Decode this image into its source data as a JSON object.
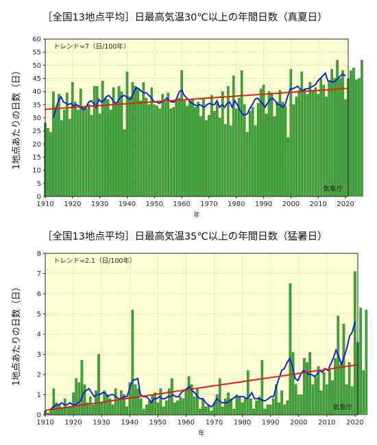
{
  "chart_data": [
    {
      "type": "bar",
      "title": "［全国13地点平均］日最高気温30℃以上の年間日数（真夏日）",
      "xlabel": "年",
      "ylabel": "1地点あたりの日数（日）",
      "trend_label": "トレンド=7（日/100年）",
      "credit": "気象庁",
      "xlim": [
        1910,
        2021
      ],
      "ylim": [
        0,
        60
      ],
      "xticks": [
        1910,
        1920,
        1930,
        1940,
        1950,
        1960,
        1970,
        1980,
        1990,
        2000,
        2010,
        2020
      ],
      "yticks": [
        0,
        5,
        10,
        15,
        20,
        25,
        30,
        35,
        40,
        45,
        50,
        55,
        60
      ],
      "grid": true,
      "bar_color": "#3fa33a",
      "moving_average_color": "#1020dd",
      "trend_line_color": "#e02010",
      "x_start": 1910,
      "values": [
        28,
        26,
        24.5,
        40,
        34,
        39,
        29,
        33,
        39.5,
        29.5,
        43.5,
        36,
        33,
        41,
        34,
        33.5,
        35,
        31,
        42,
        42,
        31.5,
        44,
        37.5,
        37,
        33,
        41.5,
        35,
        42,
        40,
        25.5,
        47.5,
        38,
        43.5,
        42,
        41,
        36.5,
        43.5,
        37.5,
        35,
        41.5,
        35,
        34.5,
        33.5,
        39,
        36,
        39.5,
        33.5,
        34,
        37,
        37.5,
        48,
        37,
        34.5,
        36.5,
        37,
        34,
        36,
        30.5,
        37.5,
        29,
        31,
        38.5,
        32.5,
        35.5,
        30,
        40,
        27.5,
        42,
        27,
        46,
        33.5,
        37.5,
        48,
        35,
        24.5,
        32.5,
        34,
        27,
        35.5,
        41,
        42.5,
        31.5,
        40,
        39.5,
        30.5,
        36,
        40.5,
        36,
        34.5,
        22.5,
        48.5,
        35,
        38,
        40.5,
        47.5,
        41,
        39,
        43.5,
        40.5,
        41.5,
        39,
        45,
        42.5,
        38,
        44,
        48.5,
        45,
        52,
        45,
        48,
        37,
        45,
        48,
        49,
        44.5,
        45,
        52
      ],
      "moving_average": [
        30,
        33.5,
        36.5,
        38,
        36,
        35.5,
        35,
        35.5,
        34.5,
        35,
        34.5,
        34,
        33,
        34,
        36,
        36.5,
        35.5,
        34,
        37,
        36,
        36.5,
        38,
        38.5,
        37.5,
        36,
        35.5,
        37,
        38,
        38.5,
        38,
        37,
        37.5,
        40,
        41.5,
        41,
        40,
        39.5,
        39.5,
        38.5,
        37.5,
        36,
        36,
        35.5,
        36,
        36.5,
        37.5,
        36.5,
        36,
        36,
        37.5,
        40,
        40.5,
        38.5,
        37.5,
        36.5,
        35.5,
        35,
        34.5,
        35,
        34.5,
        34,
        35,
        35.5,
        35,
        35,
        36.5,
        34,
        35,
        34,
        35.5,
        36,
        34,
        36.5,
        35,
        33,
        31.5,
        31,
        31.5,
        33.5,
        35,
        37,
        37.5,
        36.5,
        35.5,
        34,
        35.5,
        37,
        37.5,
        36.5,
        35,
        35,
        34,
        35,
        38,
        41,
        41,
        41.5,
        42,
        41,
        40,
        41,
        41,
        41.5,
        42,
        42.5,
        44,
        45,
        46,
        47,
        44,
        44,
        43.5,
        44,
        45,
        46,
        46.5,
        46
      ],
      "moving_average_years": [
        1913,
        2020
      ],
      "trend_line": {
        "x": [
          1910,
          2021
        ],
        "y": [
          33.2,
          41.2
        ]
      }
    },
    {
      "type": "bar",
      "title": "［全国13地点平均］日最高気温35℃以上の年間日数（猛暑日）",
      "xlabel": "年",
      "ylabel": "1地点あたりの日数（日）",
      "trend_label": "トレンド=2.1（日/100年）",
      "credit": "気象庁",
      "xlim": [
        1910,
        2021
      ],
      "ylim": [
        0,
        8
      ],
      "xticks": [
        1910,
        1920,
        1930,
        1940,
        1950,
        1960,
        1970,
        1980,
        1990,
        2000,
        2010,
        2020
      ],
      "yticks": [
        0,
        1,
        2,
        3,
        4,
        5,
        6,
        7,
        8
      ],
      "grid": true,
      "bar_color": "#3fa33a",
      "moving_average_color": "#1020dd",
      "trend_line_color": "#e02010",
      "x_start": 1910,
      "values": [
        0.2,
        0.1,
        0.3,
        1.3,
        0.6,
        0.5,
        0.3,
        0.8,
        0.4,
        0.4,
        1.1,
        1.8,
        1.6,
        2.7,
        1.5,
        0.6,
        0.9,
        0.5,
        1.2,
        3,
        0.6,
        1.2,
        1,
        0.8,
        0.5,
        1.3,
        0.7,
        1.2,
        1,
        0.4,
        1.6,
        5.2,
        1.5,
        1.3,
        0.8,
        0.3,
        0.5,
        0.7,
        1,
        1.1,
        0.6,
        1.3,
        0.4,
        0.7,
        1.3,
        1.8,
        0.6,
        0.7,
        0.9,
        0.8,
        1.2,
        1.9,
        1.5,
        0.9,
        1.3,
        0.3,
        0.8,
        0.4,
        0.5,
        0.2,
        0.6,
        1,
        1.8,
        0.4,
        0.8,
        1.1,
        0.8,
        0.3,
        1,
        0.9,
        0.6,
        0.8,
        2.2,
        0.8,
        0.3,
        0.7,
        0.9,
        2.7,
        0.3,
        0.5,
        0.5,
        0.8,
        1.5,
        0.6,
        1.2,
        0.5,
        0.7,
        6.5,
        3.1,
        1.5,
        1,
        1,
        2.8,
        2.6,
        3.1,
        1.5,
        1.9,
        2.4,
        1.2,
        2.1,
        1.5,
        2.3,
        1.7,
        2.8,
        4.9,
        2.5,
        4.5,
        1.5,
        2.6,
        1.4,
        7.1,
        3.6,
        5.3,
        2.2,
        5.2
      ],
      "moving_average": [
        0.3,
        0.4,
        0.5,
        0.5,
        0.6,
        0.5,
        0.5,
        0.6,
        0.5,
        0.5,
        0.6,
        0.7,
        1.1,
        1.2,
        1.3,
        1.1,
        0.9,
        1,
        1,
        1.1,
        1.1,
        0.9,
        1,
        1,
        0.9,
        0.8,
        0.8,
        0.9,
        0.9,
        1.3,
        1.7,
        1.75,
        1.8,
        1,
        0.9,
        0.9,
        0.8,
        0.6,
        0.8,
        0.8,
        0.9,
        0.8,
        0.8,
        0.9,
        0.9,
        1,
        0.9,
        0.9,
        1.1,
        1.2,
        1.3,
        1.4,
        1.2,
        1.1,
        0.9,
        0.8,
        0.8,
        0.6,
        0.5,
        0.4,
        0.5,
        0.8,
        0.7,
        0.6,
        0.6,
        0.6,
        0.7,
        0.8,
        0.9,
        0.9,
        0.9,
        0.9,
        0.8,
        0.9,
        1.1,
        0.8,
        0.8,
        0.8,
        0.7,
        0.7,
        0.8,
        0.9,
        0.9,
        1.4,
        1.8,
        2.2,
        2.3,
        2.6,
        2.8,
        2.4,
        1.8,
        1.7,
        2,
        2.2,
        2.1,
        2,
        2,
        1.9,
        2,
        2.2,
        2.1,
        2.3,
        2.2,
        2.5,
        2.8,
        3.2,
        2.9,
        2.5,
        2.9,
        3.3,
        3.9,
        4.1,
        4.6
      ],
      "moving_average_years": [
        1912,
        2020
      ],
      "trend_line": {
        "x": [
          1910,
          2021
        ],
        "y": [
          0.22,
          2.48
        ]
      }
    }
  ]
}
